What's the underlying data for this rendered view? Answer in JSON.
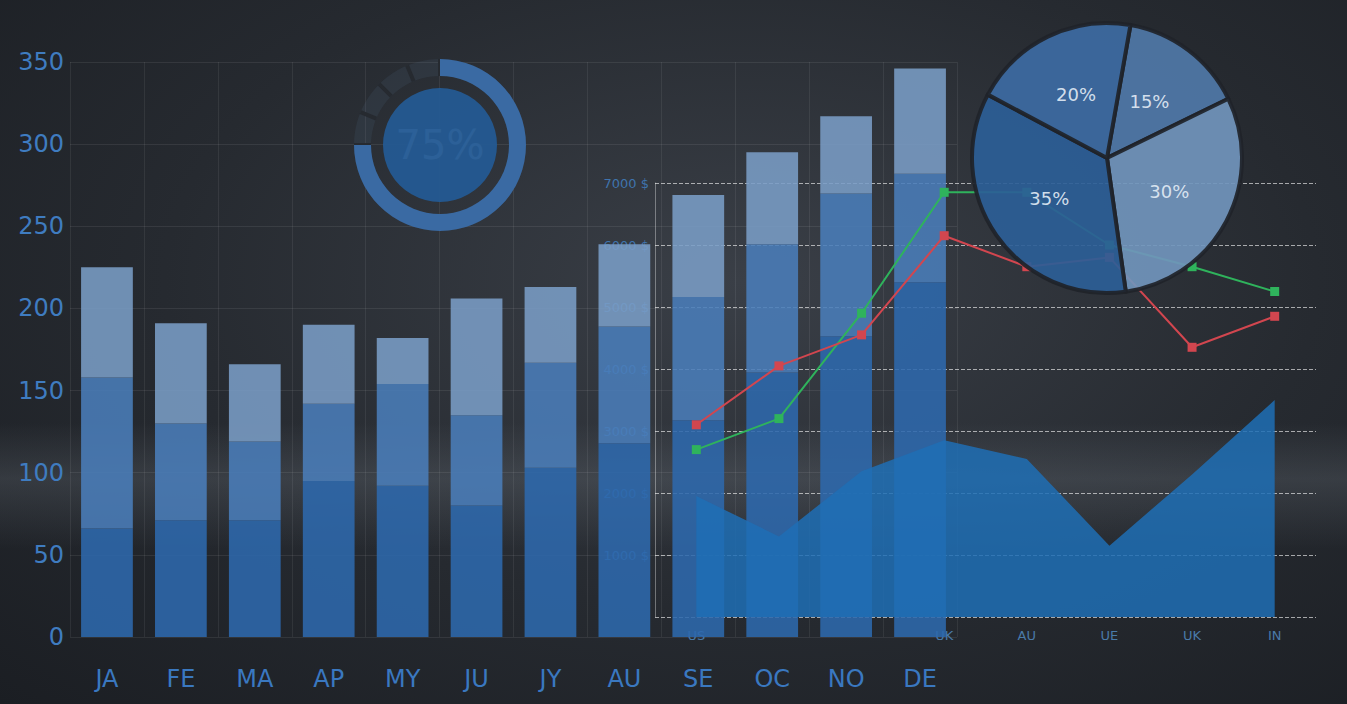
{
  "chart_data": [
    {
      "type": "bar",
      "stacked": true,
      "grid": true,
      "categories": [
        "JA",
        "FE",
        "MA",
        "AP",
        "MY",
        "JU",
        "JY",
        "AU",
        "SE",
        "OC",
        "NO",
        "DE"
      ],
      "series": [
        {
          "color": "#2d69ad",
          "values": [
            66,
            71,
            71,
            95,
            92,
            80,
            103,
            118,
            132,
            161,
            183,
            216
          ]
        },
        {
          "color": "#4a7db9",
          "values": [
            92,
            59,
            48,
            47,
            62,
            55,
            64,
            71,
            75,
            78,
            87,
            66
          ]
        },
        {
          "color": "#7a9dc6",
          "values": [
            67,
            61,
            47,
            48,
            28,
            71,
            46,
            50,
            62,
            56,
            47,
            64
          ]
        }
      ],
      "ylim": [
        0,
        350
      ],
      "yticks": [
        0,
        50,
        100,
        150,
        200,
        250,
        300,
        350
      ]
    },
    {
      "type": "line",
      "grid": true,
      "categories": [
        "US",
        null,
        null,
        "UK",
        "AU",
        "UE",
        "UK",
        "IN"
      ],
      "series": [
        {
          "type": "area",
          "color": "#1f6fb5",
          "values": [
            1950,
            1300,
            2350,
            2850,
            2550,
            1150,
            2300,
            3500
          ]
        },
        {
          "color": "#2fb35c",
          "marker": "square",
          "values": [
            2700,
            3200,
            4900,
            6850,
            6850,
            6000,
            5650,
            5250
          ]
        },
        {
          "color": "#d2464f",
          "marker": "square",
          "values": [
            3100,
            4050,
            4550,
            6150,
            5650,
            5800,
            4350,
            4850
          ]
        }
      ],
      "ylim": [
        0,
        7000
      ],
      "yticks": [
        {
          "value": 1000,
          "label": "1000 $"
        },
        {
          "value": 2000,
          "label": "2000 $"
        },
        {
          "value": 3000,
          "label": "3000 $"
        },
        {
          "value": 4000,
          "label": "4000 $"
        },
        {
          "value": 5000,
          "label": "5000 $"
        },
        {
          "value": 6000,
          "label": "6000 $"
        },
        {
          "value": 7000,
          "label": "7000 $"
        }
      ]
    },
    {
      "type": "pie",
      "values": [
        15,
        30,
        35,
        20
      ],
      "value_labels": [
        "15%",
        "30%",
        "35%",
        "20%"
      ],
      "colors": [
        "#4f78a8",
        "#7195bc",
        "#2c5e97",
        "#3d6ba3"
      ],
      "data_labels": true
    },
    {
      "type": "gauge",
      "values": [
        75
      ],
      "value_labels": [
        "75%"
      ],
      "range": [
        0,
        100
      ],
      "color": "#3a6aa3"
    }
  ]
}
